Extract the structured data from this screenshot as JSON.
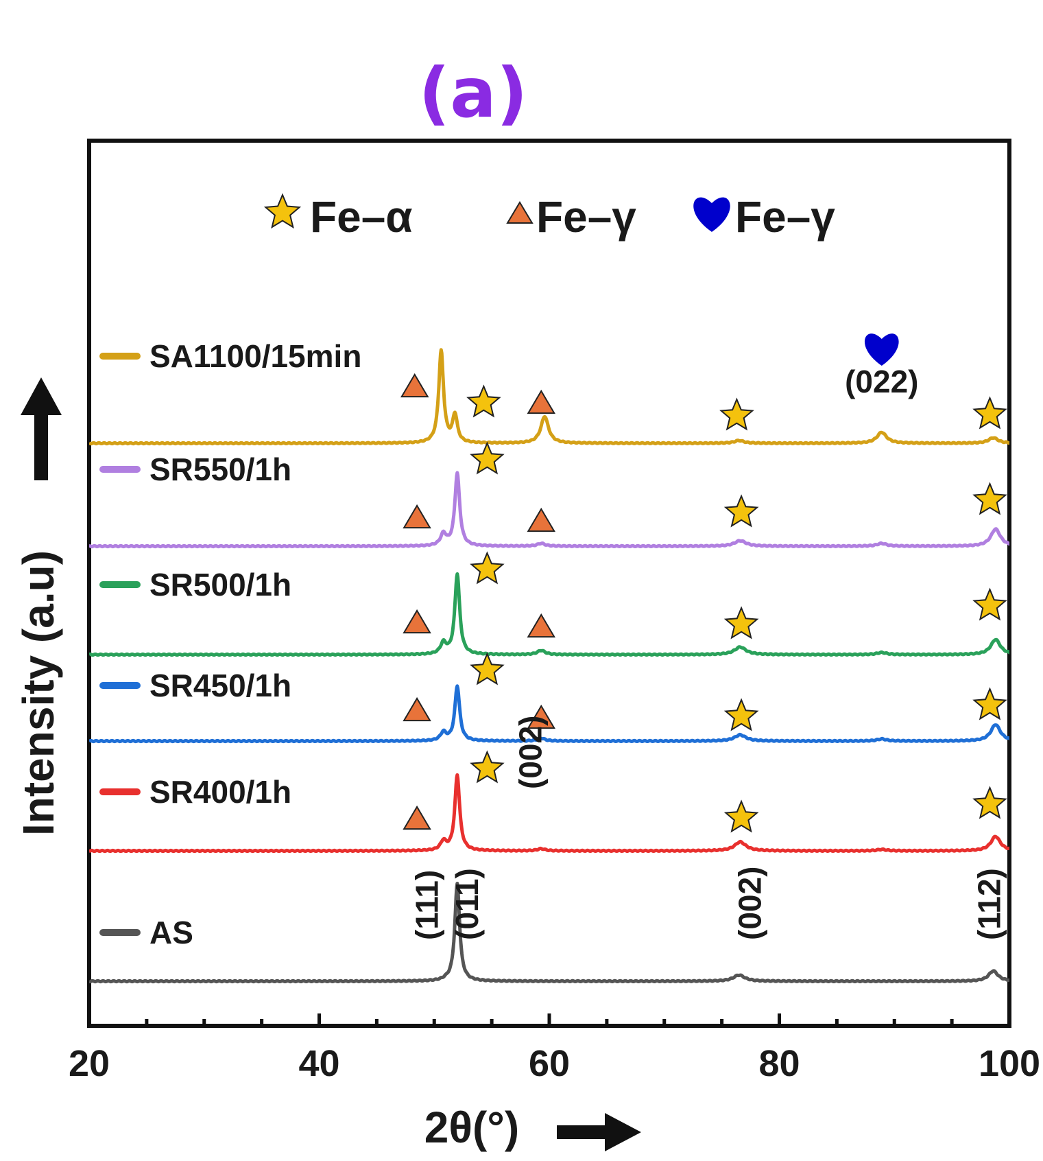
{
  "panel_label": "(a)",
  "chart_data": {
    "type": "line",
    "xlabel": "2θ(°)",
    "ylabel": "Intensity (a.u)",
    "xlim": [
      20,
      100
    ],
    "xticks": [
      20,
      40,
      60,
      80,
      100
    ],
    "legend": {
      "placement": "top",
      "entries": [
        {
          "marker": "star",
          "text": "Fe–α",
          "color": "#f4c20d"
        },
        {
          "marker": "triangle",
          "text": "Fe–γ",
          "color": "#e8733a"
        },
        {
          "marker": "heart",
          "text": "Fe–γ",
          "color": "#0000cc"
        }
      ]
    },
    "series": [
      {
        "name": "AS",
        "color": "#555555",
        "baseline": 0,
        "peaks": [
          [
            51.0,
            0.3,
            1.2
          ],
          [
            52.0,
            0.25,
            142
          ],
          [
            76.5,
            0.6,
            9
          ],
          [
            98.6,
            0.5,
            15
          ]
        ]
      },
      {
        "name": "SR400/1h",
        "color": "#e8302e",
        "baseline": 190,
        "peaks": [
          [
            50.8,
            0.3,
            13
          ],
          [
            52.0,
            0.25,
            110
          ],
          [
            59.3,
            0.4,
            3
          ],
          [
            76.6,
            0.6,
            13
          ],
          [
            88.9,
            0.5,
            2
          ],
          [
            98.8,
            0.5,
            21
          ]
        ]
      },
      {
        "name": "SR450/1h",
        "color": "#1f6fd6",
        "baseline": 350,
        "peaks": [
          [
            50.8,
            0.3,
            12
          ],
          [
            52.0,
            0.25,
            80
          ],
          [
            59.3,
            0.4,
            4
          ],
          [
            76.6,
            0.6,
            9
          ],
          [
            88.9,
            0.5,
            3
          ],
          [
            98.8,
            0.5,
            24
          ]
        ]
      },
      {
        "name": "SR500/1h",
        "color": "#2aa15a",
        "baseline": 476,
        "peaks": [
          [
            50.8,
            0.3,
            16
          ],
          [
            52.0,
            0.25,
            117
          ],
          [
            59.3,
            0.4,
            6
          ],
          [
            76.6,
            0.6,
            11
          ],
          [
            88.9,
            0.5,
            3
          ],
          [
            98.8,
            0.5,
            22
          ]
        ]
      },
      {
        "name": "SR550/1h",
        "color": "#b07fe0",
        "baseline": 634,
        "peaks": [
          [
            50.8,
            0.3,
            17
          ],
          [
            52.0,
            0.25,
            106
          ],
          [
            59.3,
            0.4,
            4
          ],
          [
            76.6,
            0.6,
            8
          ],
          [
            88.9,
            0.5,
            4
          ],
          [
            98.8,
            0.5,
            25
          ]
        ]
      },
      {
        "name": "SA1100/15min",
        "color": "#d4a017",
        "baseline": 784,
        "peaks": [
          [
            50.6,
            0.25,
            134
          ],
          [
            51.8,
            0.25,
            40
          ],
          [
            59.6,
            0.4,
            39
          ],
          [
            76.5,
            0.5,
            4
          ],
          [
            88.9,
            0.5,
            16
          ],
          [
            98.6,
            0.5,
            8
          ]
        ]
      }
    ],
    "annotations": [
      {
        "text": "(111)",
        "x": 50.3,
        "y": 60,
        "rotation": -90
      },
      {
        "text": "(011)",
        "x": 53.8,
        "y": 60,
        "rotation": -90
      },
      {
        "text": "(002)",
        "x": 78.4,
        "y": 60,
        "rotation": -90
      },
      {
        "text": "(112)",
        "x": 99.2,
        "y": 60,
        "rotation": -90
      },
      {
        "text": "(002)",
        "x": 59.3,
        "y": 280,
        "rotation": -90
      },
      {
        "text": "(022)",
        "x": 88.9,
        "y": 858,
        "rotation": 0
      }
    ],
    "markers": [
      {
        "type": "triangle",
        "x": 48.5,
        "y": 238
      },
      {
        "type": "star",
        "x": 54.6,
        "y": 310
      },
      {
        "type": "star",
        "x": 76.7,
        "y": 238
      },
      {
        "type": "star",
        "x": 98.3,
        "y": 258
      },
      {
        "type": "triangle",
        "x": 48.5,
        "y": 396
      },
      {
        "type": "star",
        "x": 54.6,
        "y": 453
      },
      {
        "type": "triangle",
        "x": 59.3,
        "y": 385
      },
      {
        "type": "star",
        "x": 76.7,
        "y": 386
      },
      {
        "type": "star",
        "x": 98.3,
        "y": 402
      },
      {
        "type": "triangle",
        "x": 48.5,
        "y": 524
      },
      {
        "type": "star",
        "x": 54.6,
        "y": 600
      },
      {
        "type": "triangle",
        "x": 59.3,
        "y": 518
      },
      {
        "type": "star",
        "x": 76.7,
        "y": 520
      },
      {
        "type": "star",
        "x": 98.3,
        "y": 547
      },
      {
        "type": "triangle",
        "x": 48.5,
        "y": 677
      },
      {
        "type": "star",
        "x": 54.6,
        "y": 760
      },
      {
        "type": "triangle",
        "x": 59.3,
        "y": 672
      },
      {
        "type": "star",
        "x": 76.7,
        "y": 683
      },
      {
        "type": "star",
        "x": 98.3,
        "y": 701
      },
      {
        "type": "triangle",
        "x": 48.3,
        "y": 868
      },
      {
        "type": "star",
        "x": 54.3,
        "y": 843
      },
      {
        "type": "triangle",
        "x": 59.3,
        "y": 844
      },
      {
        "type": "star",
        "x": 76.3,
        "y": 824
      },
      {
        "type": "star",
        "x": 98.3,
        "y": 826
      },
      {
        "type": "heart",
        "x": 88.9,
        "y": 923
      }
    ]
  }
}
